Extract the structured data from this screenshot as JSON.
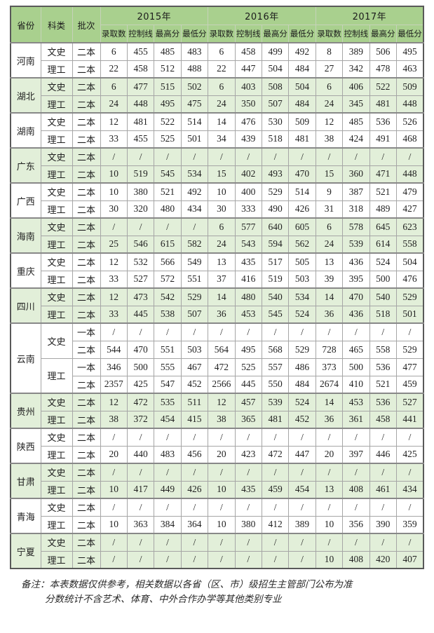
{
  "colors": {
    "header_bg": "#a9d08e",
    "band_bg": "#e2efd9",
    "row_bg": "#ffffff",
    "grid_border": "#a6a6a6",
    "header_border": "#c6d2ba",
    "group_border": "#888888",
    "outer_border": "#595959",
    "text": "#1f1f1f"
  },
  "table": {
    "fixed_headers": [
      "省份",
      "科类",
      "批次"
    ],
    "year_headers": [
      "2015年",
      "2016年",
      "2017年"
    ],
    "metric_headers": [
      "录取数",
      "控制线",
      "最高分",
      "最低分"
    ],
    "groups": [
      {
        "province": "河南",
        "rows": [
          {
            "subject": "文史",
            "batch": "二本",
            "values": [
              "6",
              "455",
              "485",
              "483",
              "6",
              "458",
              "499",
              "492",
              "8",
              "389",
              "506",
              "495"
            ]
          },
          {
            "subject": "理工",
            "batch": "二本",
            "values": [
              "22",
              "458",
              "512",
              "488",
              "22",
              "447",
              "504",
              "484",
              "27",
              "342",
              "478",
              "463"
            ]
          }
        ]
      },
      {
        "province": "湖北",
        "rows": [
          {
            "subject": "文史",
            "batch": "二本",
            "values": [
              "6",
              "477",
              "515",
              "502",
              "6",
              "403",
              "508",
              "504",
              "6",
              "406",
              "522",
              "509"
            ]
          },
          {
            "subject": "理工",
            "batch": "二本",
            "values": [
              "24",
              "448",
              "495",
              "475",
              "24",
              "350",
              "507",
              "484",
              "24",
              "345",
              "481",
              "448"
            ]
          }
        ]
      },
      {
        "province": "湖南",
        "rows": [
          {
            "subject": "文史",
            "batch": "二本",
            "values": [
              "12",
              "481",
              "522",
              "514",
              "14",
              "476",
              "530",
              "509",
              "12",
              "485",
              "536",
              "526"
            ]
          },
          {
            "subject": "理工",
            "batch": "二本",
            "values": [
              "33",
              "455",
              "525",
              "501",
              "34",
              "439",
              "518",
              "481",
              "38",
              "424",
              "491",
              "468"
            ]
          }
        ]
      },
      {
        "province": "广东",
        "rows": [
          {
            "subject": "文史",
            "batch": "二本",
            "values": [
              "/",
              "/",
              "/",
              "/",
              "/",
              "/",
              "/",
              "/",
              "/",
              "/",
              "/",
              "/"
            ]
          },
          {
            "subject": "理工",
            "batch": "二本",
            "values": [
              "10",
              "519",
              "545",
              "534",
              "15",
              "402",
              "493",
              "470",
              "15",
              "360",
              "471",
              "448"
            ]
          }
        ]
      },
      {
        "province": "广西",
        "rows": [
          {
            "subject": "文史",
            "batch": "二本",
            "values": [
              "10",
              "380",
              "521",
              "492",
              "10",
              "400",
              "529",
              "514",
              "9",
              "387",
              "521",
              "479"
            ]
          },
          {
            "subject": "理工",
            "batch": "二本",
            "values": [
              "30",
              "320",
              "480",
              "434",
              "30",
              "333",
              "490",
              "426",
              "31",
              "318",
              "489",
              "427"
            ]
          }
        ]
      },
      {
        "province": "海南",
        "rows": [
          {
            "subject": "文史",
            "batch": "二本",
            "values": [
              "/",
              "/",
              "/",
              "/",
              "6",
              "577",
              "640",
              "605",
              "6",
              "578",
              "645",
              "623"
            ]
          },
          {
            "subject": "理工",
            "batch": "二本",
            "values": [
              "25",
              "546",
              "615",
              "582",
              "24",
              "543",
              "594",
              "562",
              "24",
              "539",
              "614",
              "558"
            ]
          }
        ]
      },
      {
        "province": "重庆",
        "rows": [
          {
            "subject": "文史",
            "batch": "二本",
            "values": [
              "12",
              "532",
              "566",
              "549",
              "13",
              "435",
              "517",
              "505",
              "13",
              "436",
              "524",
              "504"
            ]
          },
          {
            "subject": "理工",
            "batch": "二本",
            "values": [
              "33",
              "527",
              "572",
              "551",
              "37",
              "416",
              "519",
              "503",
              "39",
              "395",
              "500",
              "476"
            ]
          }
        ]
      },
      {
        "province": "四川",
        "rows": [
          {
            "subject": "文史",
            "batch": "二本",
            "values": [
              "12",
              "473",
              "542",
              "529",
              "14",
              "480",
              "540",
              "534",
              "14",
              "470",
              "540",
              "529"
            ]
          },
          {
            "subject": "理工",
            "batch": "二本",
            "values": [
              "33",
              "445",
              "538",
              "507",
              "36",
              "453",
              "545",
              "524",
              "36",
              "436",
              "518",
              "501"
            ]
          }
        ]
      },
      {
        "province": "云南",
        "rows": [
          {
            "subject": "文史",
            "subject_span": 2,
            "batch": "一本",
            "values": [
              "/",
              "/",
              "/",
              "/",
              "/",
              "/",
              "/",
              "/",
              "/",
              "/",
              "/",
              "/"
            ]
          },
          {
            "batch": "二本",
            "values": [
              "544",
              "470",
              "551",
              "503",
              "564",
              "495",
              "568",
              "529",
              "728",
              "465",
              "558",
              "529"
            ]
          },
          {
            "subject": "理工",
            "subject_span": 2,
            "batch": "一本",
            "values": [
              "346",
              "500",
              "555",
              "467",
              "472",
              "525",
              "557",
              "486",
              "373",
              "500",
              "536",
              "477"
            ]
          },
          {
            "batch": "二本",
            "values": [
              "2357",
              "425",
              "547",
              "452",
              "2566",
              "445",
              "550",
              "484",
              "2674",
              "410",
              "521",
              "459"
            ]
          }
        ]
      },
      {
        "province": "贵州",
        "rows": [
          {
            "subject": "文史",
            "batch": "二本",
            "values": [
              "12",
              "472",
              "535",
              "511",
              "12",
              "457",
              "539",
              "524",
              "14",
              "453",
              "536",
              "527"
            ]
          },
          {
            "subject": "理工",
            "batch": "二本",
            "values": [
              "38",
              "372",
              "454",
              "415",
              "38",
              "365",
              "481",
              "452",
              "36",
              "361",
              "458",
              "441"
            ]
          }
        ]
      },
      {
        "province": "陕西",
        "rows": [
          {
            "subject": "文史",
            "batch": "二本",
            "values": [
              "/",
              "/",
              "/",
              "/",
              "/",
              "/",
              "/",
              "/",
              "/",
              "/",
              "/",
              "/"
            ]
          },
          {
            "subject": "理工",
            "batch": "二本",
            "values": [
              "20",
              "440",
              "483",
              "456",
              "20",
              "423",
              "472",
              "447",
              "20",
              "397",
              "446",
              "425"
            ]
          }
        ]
      },
      {
        "province": "甘肃",
        "rows": [
          {
            "subject": "文史",
            "batch": "二本",
            "values": [
              "/",
              "/",
              "/",
              "/",
              "/",
              "/",
              "/",
              "/",
              "/",
              "/",
              "/",
              "/"
            ]
          },
          {
            "subject": "理工",
            "batch": "二本",
            "values": [
              "10",
              "417",
              "449",
              "426",
              "10",
              "435",
              "459",
              "454",
              "13",
              "408",
              "461",
              "434"
            ]
          }
        ]
      },
      {
        "province": "青海",
        "rows": [
          {
            "subject": "文史",
            "batch": "二本",
            "values": [
              "/",
              "/",
              "/",
              "/",
              "/",
              "/",
              "/",
              "/",
              "/",
              "/",
              "/",
              "/"
            ]
          },
          {
            "subject": "理工",
            "batch": "二本",
            "values": [
              "10",
              "363",
              "384",
              "364",
              "10",
              "380",
              "412",
              "389",
              "10",
              "356",
              "390",
              "359"
            ]
          }
        ]
      },
      {
        "province": "宁夏",
        "rows": [
          {
            "subject": "文史",
            "batch": "二本",
            "values": [
              "/",
              "/",
              "/",
              "/",
              "/",
              "/",
              "/",
              "/",
              "/",
              "/",
              "/",
              "/"
            ]
          },
          {
            "subject": "理工",
            "batch": "二本",
            "values": [
              "/",
              "/",
              "/",
              "/",
              "/",
              "/",
              "/",
              "/",
              "10",
              "408",
              "420",
              "407"
            ]
          }
        ]
      }
    ]
  },
  "notes": {
    "line1": "备注：本表数据仅供参考，相关数据以各省（区、市）级招生主管部门公布为准",
    "line2": "分数统计不含艺术、体育、中外合作办学等其他类别专业"
  }
}
